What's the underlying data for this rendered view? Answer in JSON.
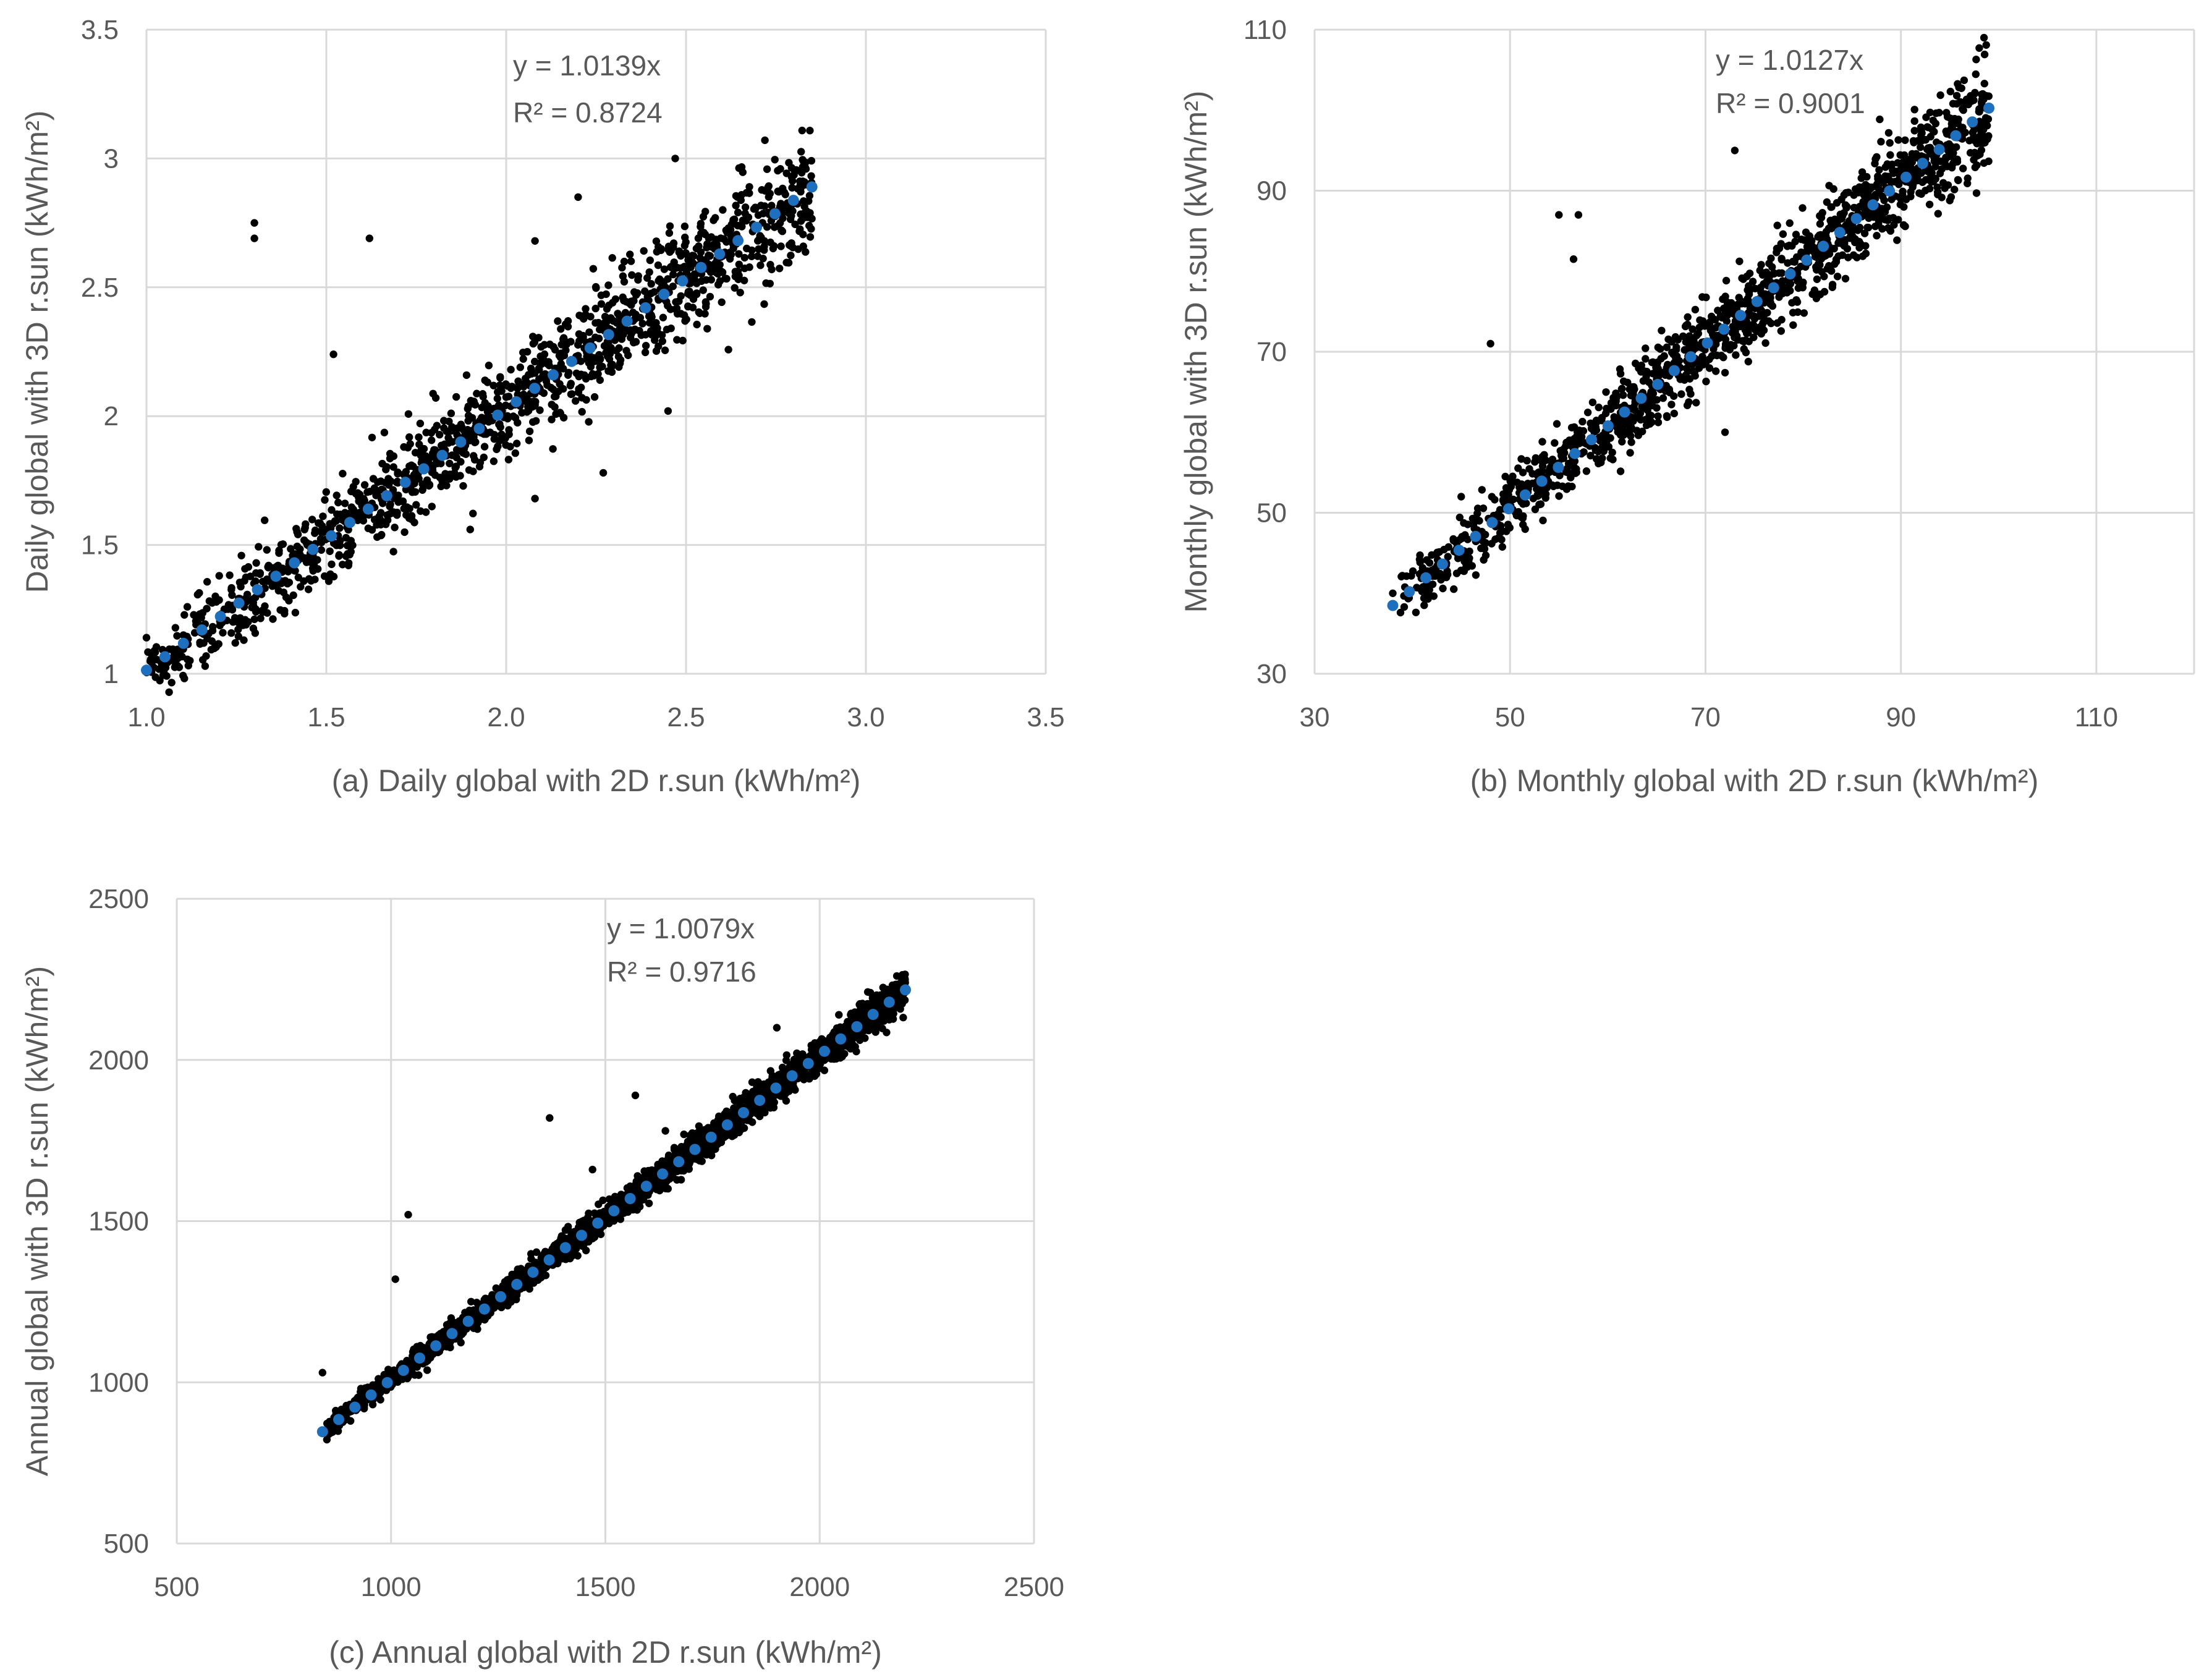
{
  "colors": {
    "points": "#000000",
    "fit": "#1f6fbf",
    "grid": "#d9d9d9",
    "axis_text": "#595959"
  },
  "chart_data": [
    {
      "type": "scatter",
      "id": "daily",
      "xlabel": "(a) Daily global with 2D r.sun (kWh/m²)",
      "ylabel": "Daily global with 3D r.sun (kWh/m²)",
      "xlim": [
        1.0,
        3.5
      ],
      "ylim": [
        1,
        3.5
      ],
      "xticks": [
        "1.0",
        "1.5",
        "2.0",
        "2.5",
        "3.0",
        "3.5"
      ],
      "yticks": [
        "1",
        "1.5",
        "2",
        "2.5",
        "3",
        "3.5"
      ],
      "grid": true,
      "trendline": {
        "slope": 1.0139,
        "equation": "y = 1.0139x",
        "r2": "R² = 0.8724"
      },
      "data_range": {
        "x": [
          1.0,
          2.85
        ]
      },
      "point_count": 1400,
      "spread": 0.12,
      "outliers": [
        [
          1.3,
          2.75
        ],
        [
          1.3,
          2.69
        ],
        [
          1.62,
          2.69
        ],
        [
          1.52,
          2.24
        ],
        [
          2.08,
          2.68
        ],
        [
          2.2,
          2.85
        ],
        [
          2.47,
          3.0
        ],
        [
          1.9,
          1.56
        ],
        [
          2.08,
          1.68
        ],
        [
          2.27,
          1.78
        ],
        [
          2.45,
          2.02
        ],
        [
          1.0,
          1.14
        ]
      ]
    },
    {
      "type": "scatter",
      "id": "monthly",
      "xlabel": "(b) Monthly global with 2D r.sun (kWh/m²)",
      "ylabel": "Monthly global with 3D r.sun (kWh/m²)",
      "xlim": [
        30,
        120
      ],
      "ylim": [
        30,
        110
      ],
      "xticks": [
        "30",
        "50",
        "70",
        "90",
        "110"
      ],
      "yticks": [
        "30",
        "50",
        "70",
        "90",
        "110"
      ],
      "grid": true,
      "trendline": {
        "slope": 1.0127,
        "equation": "y = 1.0127x",
        "r2": "R² = 0.9001"
      },
      "data_range": {
        "x": [
          38,
          99
        ]
      },
      "point_count": 1400,
      "spread": 3.2,
      "outliers": [
        [
          48,
          71
        ],
        [
          55,
          87
        ],
        [
          57,
          87
        ],
        [
          56.5,
          81.5
        ],
        [
          73,
          95
        ],
        [
          72,
          60
        ],
        [
          98.5,
          109
        ],
        [
          45,
          52
        ],
        [
          38,
          40
        ]
      ]
    },
    {
      "type": "scatter",
      "id": "annual",
      "xlabel": "(c) Annual global with 2D r.sun (kWh/m²)",
      "ylabel": "Annual global with 3D r.sun (kWh/m²)",
      "xlim": [
        500,
        2500
      ],
      "ylim": [
        500,
        2500
      ],
      "xticks": [
        "500",
        "1000",
        "1500",
        "2000",
        "2500"
      ],
      "yticks": [
        "500",
        "1000",
        "1500",
        "2000",
        "2500"
      ],
      "grid": true,
      "trendline": {
        "slope": 1.0079,
        "equation": "y = 1.0079x",
        "r2": "R² = 0.9716"
      },
      "data_range": {
        "x": [
          840,
          2200
        ]
      },
      "point_count": 2600,
      "spread": 28,
      "outliers": [
        [
          840,
          1030
        ],
        [
          1010,
          1320
        ],
        [
          1040,
          1520
        ],
        [
          1370,
          1820
        ],
        [
          1570,
          1890
        ],
        [
          1900,
          2100
        ],
        [
          1470,
          1660
        ],
        [
          1640,
          1780
        ]
      ]
    }
  ]
}
